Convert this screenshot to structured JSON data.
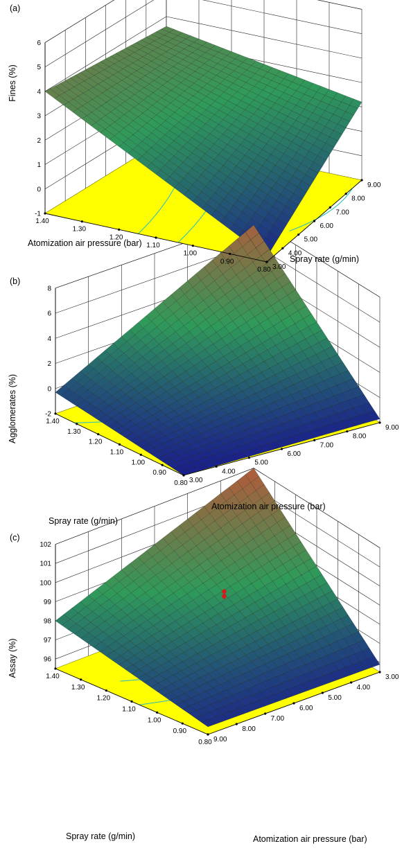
{
  "colors": {
    "floor": "#ffff00",
    "floor_contour": "#35c2b6",
    "surface_low": "#1a1f8c",
    "surface_mid": "#2f9a5a",
    "surface_high": "#b45a3a",
    "surface_mesh": "#0b0b0b",
    "design_point": "#d41a1a"
  },
  "chart_data": [
    {
      "type": "surface",
      "panel_label": "(a)",
      "zlabel": "Fines (%)",
      "xlabel": "Atomization air pressure (bar)",
      "ylabel": "Spray rate (g/min)",
      "x_ticks": [
        "1.40",
        "1.30",
        "1.20",
        "1.10",
        "1.00",
        "0.90",
        "0.80"
      ],
      "y_ticks": [
        "3.00",
        "4.00",
        "5.00",
        "6.00",
        "7.00",
        "8.00",
        "9.00"
      ],
      "z_ticks": [
        "-1",
        "0",
        "1",
        "2",
        "3",
        "4",
        "5",
        "6"
      ],
      "x_range": [
        0.8,
        1.4
      ],
      "y_range": [
        3.0,
        9.0
      ],
      "z_range": [
        -1,
        6
      ],
      "corner_values": [
        {
          "x": 1.4,
          "y": 3.0,
          "z": 4.0
        },
        {
          "x": 0.8,
          "y": 3.0,
          "z": -0.8
        },
        {
          "x": 0.8,
          "y": 9.0,
          "z": 2.2
        },
        {
          "x": 1.4,
          "y": 9.0,
          "z": 3.6
        }
      ]
    },
    {
      "type": "surface",
      "panel_label": "(b)",
      "zlabel": "Agglomerates (%)",
      "xlabel": "Atomization air pressure (bar)",
      "ylabel": "Spray rate (g/min)",
      "x_ticks": [
        "1.40",
        "1.30",
        "1.20",
        "1.10",
        "1.00",
        "0.90",
        "0.80"
      ],
      "y_ticks": [
        "3.00",
        "4.00",
        "5.00",
        "6.00",
        "7.00",
        "8.00",
        "9.00"
      ],
      "z_ticks": [
        "-2",
        "0",
        "2",
        "4",
        "6",
        "8"
      ],
      "x_range": [
        0.8,
        1.4
      ],
      "y_range": [
        3.0,
        9.0
      ],
      "z_range": [
        -2,
        8
      ],
      "corner_values": [
        {
          "x": 1.4,
          "y": 9.0,
          "z": -0.3
        },
        {
          "x": 1.4,
          "y": 3.0,
          "z": -2.0
        },
        {
          "x": 0.8,
          "y": 3.0,
          "z": -1.7
        },
        {
          "x": 0.8,
          "y": 9.0,
          "z": 7.5
        }
      ]
    },
    {
      "type": "surface",
      "panel_label": "(c)",
      "zlabel": "Assay (%)",
      "xlabel": "Atomization air pressure (bar)",
      "ylabel": "Spray rate (g/min)",
      "x_ticks": [
        "1.40",
        "1.30",
        "1.20",
        "1.10",
        "1.00",
        "0.90",
        "0.80"
      ],
      "y_ticks": [
        "9.00",
        "8.00",
        "7.00",
        "6.00",
        "5.00",
        "4.00",
        "3.00"
      ],
      "z_ticks": [
        "96",
        "97",
        "98",
        "99",
        "100",
        "101",
        "102"
      ],
      "x_range": [
        0.8,
        1.4
      ],
      "y_range": [
        3.0,
        9.0
      ],
      "z_range": [
        95.5,
        102
      ],
      "corner_values": [
        {
          "x": 1.4,
          "y": 3.0,
          "z": 98.0
        },
        {
          "x": 1.4,
          "y": 9.0,
          "z": 95.9
        },
        {
          "x": 0.8,
          "y": 9.0,
          "z": 95.9
        },
        {
          "x": 0.8,
          "y": 3.0,
          "z": 102.0
        }
      ],
      "design_point": {
        "x": 1.1,
        "y": 6.0,
        "z": 99.3
      }
    }
  ]
}
